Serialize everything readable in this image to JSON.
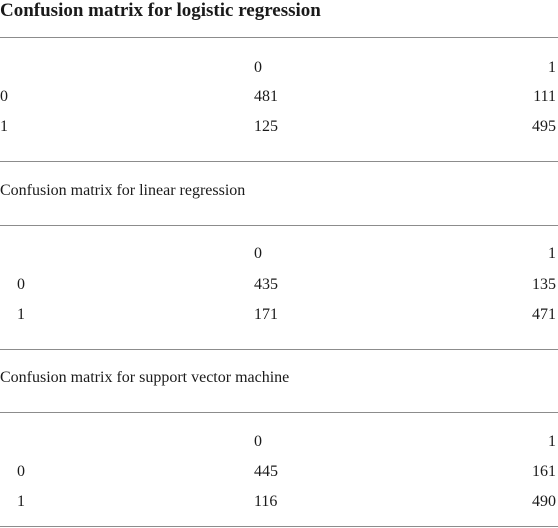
{
  "tables": [
    {
      "title": "Confusion matrix for logistic regression",
      "col_headers": [
        "0",
        "1"
      ],
      "rows": [
        {
          "label": "0",
          "values": [
            "481",
            "111"
          ]
        },
        {
          "label": "1",
          "values": [
            "125",
            "495"
          ]
        }
      ]
    },
    {
      "title": "Confusion matrix for linear regression",
      "col_headers": [
        "0",
        "1"
      ],
      "rows": [
        {
          "label": "0",
          "values": [
            "435",
            "135"
          ]
        },
        {
          "label": "1",
          "values": [
            "171",
            "471"
          ]
        }
      ]
    },
    {
      "title": "Confusion matrix for support vector machine",
      "col_headers": [
        "0",
        "1"
      ],
      "rows": [
        {
          "label": "0",
          "values": [
            "445",
            "161"
          ]
        },
        {
          "label": "1",
          "values": [
            "116",
            "490"
          ]
        }
      ]
    }
  ]
}
